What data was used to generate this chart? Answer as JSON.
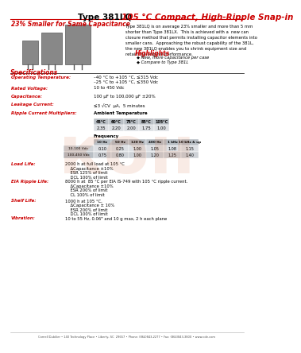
{
  "title_black": "Type 381LQ ",
  "title_red": "105 °C Compact, High-Ripple Snap-in",
  "subtitle": "23% Smaller for Same Capacitance",
  "body_text": "Type 381LQ is on average 23% smaller and more than 5 mm\nshorter than Type 381LX.  This is achieved with a  new can\nclosure method that permits installing capacitor elements into\nsmaller cans.  Approaching the robust capability of the 381L,\nthe new 381LQ enables you to shrink equipment size and\nretain the original performance.",
  "highlights_title": "Highlights",
  "highlights": [
    "New, more capacitance per case",
    "Compare to Type 381L"
  ],
  "specs_title": "Specifications",
  "spec_labels": [
    "Operating Temperature:",
    "Rated Voltage:",
    "Capacitance:",
    "Leakage Current:",
    "Ripple Current Multipliers:"
  ],
  "spec_values": [
    "–40 °C to +105 °C, ≤315 Vdc\n–25 °C to +105 °C, ≤350 Vdc",
    "10 to 450 Vdc",
    "100 μF to 100,000 μF ±20%",
    "≤3 √CV  μA,  5 minutes",
    "Ambient Temperature"
  ],
  "amb_temp_headers": [
    "45°C",
    "60°C",
    "75°C",
    "85°C",
    "105°C"
  ],
  "amb_temp_values": [
    "2.35",
    "2.20",
    "2.00",
    "1.75",
    "1.00"
  ],
  "freq_label": "Frequency",
  "freq_headers": [
    "10 Hz",
    "50 Hz",
    "120 Hz",
    "400 Hz",
    "1 kHz",
    "10 kHz & up"
  ],
  "freq_row1_label": "10-100 Vdc",
  "freq_row1": [
    "0.10",
    "0.25",
    "1.00",
    "1.05",
    "1.08",
    "1.15"
  ],
  "freq_row2_label": "100-450 Vdc",
  "freq_row2": [
    "0.75",
    "0.80",
    "1.00",
    "1.20",
    "1.25",
    "1.40"
  ],
  "load_life_label": "Load Life:",
  "load_life_text": "2000 h at full load at 105 °C\nΔCapacitance ±10%\nESR 125% of limit\nDCL 100% of limit",
  "eia_label": "EIA Ripple Life:",
  "eia_text": "8000 h at  85 °C per EIA IS-749 with 105 °C ripple current.\nΔCapacitance ±10%\nESR 200% of limit\nCL 100% of limit",
  "shelf_label": "Shelf Life:",
  "shelf_text": "1000 h at 105 °C,\nΔCapacitance ± 10%\nESR 200% of limit\nDCL 100% of limit",
  "vib_label": "Vibration:",
  "vib_text": "10 to 55 Hz, 0.06\" and 10 g max, 2 h each plane",
  "footer": "Cornell Dubilier • 140 Technology Place • Liberty, SC  29657 • Phone: (864)843-2277 • Fax: (864)843-3800 • www.cde.com",
  "red_color": "#cc0000",
  "black_color": "#000000",
  "gray_color": "#666666",
  "watermark_color": "#cc4400"
}
